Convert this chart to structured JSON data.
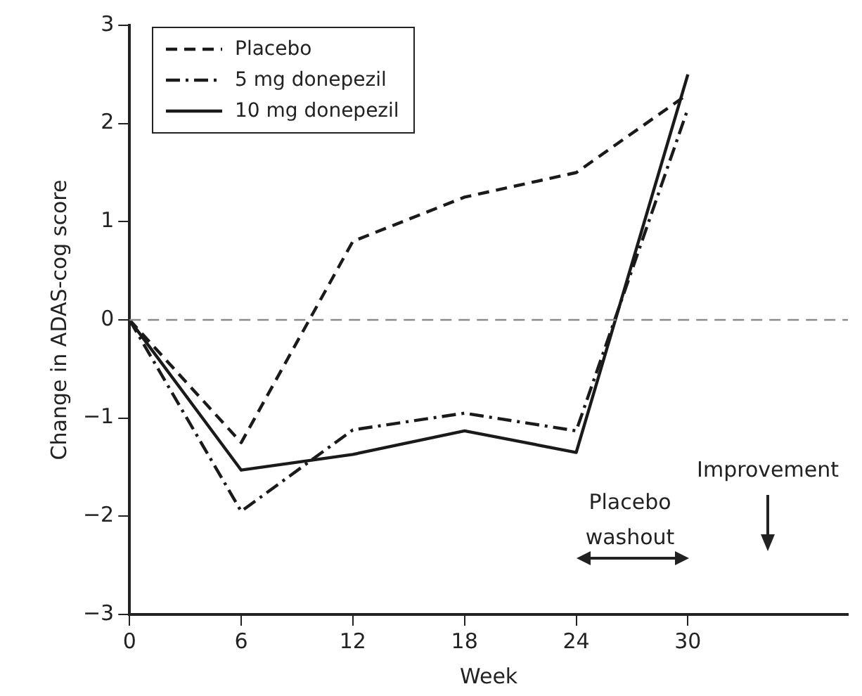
{
  "chart_data": {
    "type": "line",
    "xlabel": "Week",
    "ylabel": "Change in ADAS-cog score",
    "x": [
      0,
      6,
      12,
      18,
      24,
      30
    ],
    "series": [
      {
        "name": "Placebo",
        "color": "#1a1a1a",
        "line_style": "dashed",
        "values": [
          0,
          -1.25,
          0.8,
          1.25,
          1.5,
          2.3
        ]
      },
      {
        "name": "5 mg donepezil",
        "color": "#1a1a1a",
        "line_style": "dashdot",
        "values": [
          0,
          -1.95,
          -1.12,
          -0.95,
          -1.13,
          2.15
        ]
      },
      {
        "name": "10 mg donepezil",
        "color": "#1a1a1a",
        "line_style": "solid",
        "values": [
          0,
          -1.53,
          -1.37,
          -1.13,
          -1.35,
          2.5
        ]
      }
    ],
    "xlim": [
      0,
      38.6
    ],
    "xticks": [
      0,
      6,
      12,
      18,
      24,
      30
    ],
    "ylim": [
      -3,
      3
    ],
    "yticks": [
      {
        "value": -3,
        "label": "−3"
      },
      {
        "value": -2,
        "label": "−2"
      },
      {
        "value": -1,
        "label": "−1"
      },
      0,
      1,
      2,
      3
    ],
    "ref_lines": [
      {
        "axis": "y",
        "value": 0,
        "color": "#8c8c8c",
        "line_style": "dashed"
      }
    ],
    "annotations": [
      "Placebo washout",
      "Improvement"
    ],
    "legend": "top left",
    "grid": false,
    "marker": "none"
  }
}
